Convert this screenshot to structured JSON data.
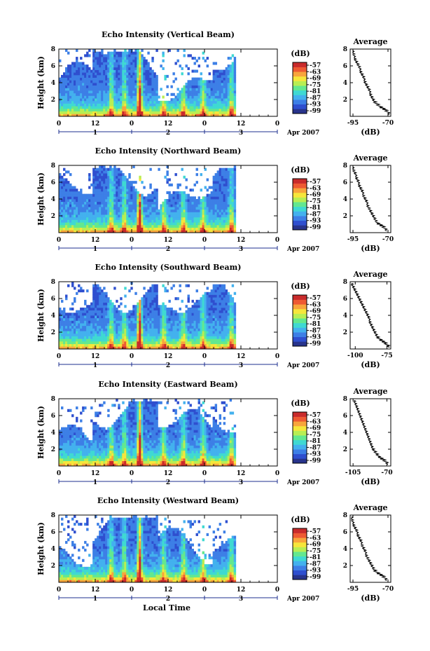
{
  "colors": {
    "colorbar": [
      "#28348c",
      "#2f4fcf",
      "#3d7fe6",
      "#43b1ee",
      "#3fd9d2",
      "#63e88f",
      "#b8ee53",
      "#f6e63b",
      "#f8a53c",
      "#ee5a33",
      "#c92b2b"
    ],
    "trace": "#000000",
    "date_axis": "#1d2f8f"
  },
  "chart_data": [
    {
      "type": "heatmap",
      "title": "Echo Intensity (Vertical Beam)",
      "ylabel": "Height (km)",
      "ylim": [
        0,
        8
      ],
      "yticks": [
        "2",
        "4",
        "6",
        "8"
      ],
      "xticks": [
        "0",
        "12",
        "0",
        "12",
        "0",
        "12",
        "0"
      ],
      "date_ticks": [
        "1",
        "2",
        "3"
      ],
      "date_label": "Apr 2007",
      "cbar_label": "(dB)",
      "cbar_ticks": [
        "-57",
        "-63",
        "-69",
        "-75",
        "-81",
        "-87",
        "-93",
        "-99"
      ],
      "profile": {
        "title": "Average",
        "xlabel": "(dB)",
        "xticks": [
          "-95",
          "-70"
        ],
        "xlim": [
          -97,
          -68
        ],
        "yticks": [
          "2",
          "4",
          "6",
          "8"
        ],
        "height_km": [
          0.2,
          0.5,
          0.8,
          1.0,
          1.2,
          1.5,
          1.8,
          2.1,
          2.4,
          2.7,
          3.0,
          3.3,
          3.6,
          3.9,
          4.2,
          4.5,
          4.8,
          5.1,
          5.4,
          5.7,
          6.0,
          6.3,
          6.6,
          6.9,
          7.2,
          7.5,
          7.8
        ],
        "db": [
          -69,
          -70,
          -72,
          -74,
          -76,
          -78,
          -80,
          -81,
          -82,
          -83,
          -83,
          -84,
          -85,
          -86,
          -87,
          -87,
          -88,
          -89,
          -90,
          -90,
          -91,
          -92,
          -93,
          -94,
          -94,
          -95,
          -95
        ]
      }
    },
    {
      "type": "heatmap",
      "title": "Echo Intensity (Northward Beam)",
      "ylabel": "Height (km)",
      "ylim": [
        0,
        8
      ],
      "yticks": [
        "2",
        "4",
        "6",
        "8"
      ],
      "xticks": [
        "0",
        "12",
        "0",
        "12",
        "0",
        "12",
        "0"
      ],
      "date_ticks": [
        "1",
        "2",
        "3"
      ],
      "date_label": "Apr 2007",
      "cbar_label": "(dB)",
      "cbar_ticks": [
        "-57",
        "-63",
        "-69",
        "-75",
        "-81",
        "-87",
        "-93",
        "-99"
      ],
      "profile": {
        "title": "Average",
        "xlabel": "(dB)",
        "xticks": [
          "-95",
          "-70"
        ],
        "xlim": [
          -97,
          -68
        ],
        "yticks": [
          "2",
          "4",
          "6",
          "8"
        ],
        "height_km": [
          0.2,
          0.5,
          0.8,
          1.0,
          1.2,
          1.5,
          1.8,
          2.1,
          2.4,
          2.7,
          3.0,
          3.3,
          3.6,
          3.9,
          4.2,
          4.5,
          4.8,
          5.1,
          5.4,
          5.7,
          6.0,
          6.3,
          6.6,
          6.9,
          7.2,
          7.5,
          7.8
        ],
        "db": [
          -71,
          -72,
          -74,
          -76,
          -78,
          -79,
          -80,
          -81,
          -82,
          -83,
          -84,
          -85,
          -85,
          -86,
          -87,
          -88,
          -88,
          -89,
          -90,
          -91,
          -91,
          -92,
          -93,
          -93,
          -94,
          -95,
          -95
        ]
      }
    },
    {
      "type": "heatmap",
      "title": "Echo Intensity (Southward Beam)",
      "ylabel": "Height (km)",
      "ylim": [
        0,
        8
      ],
      "yticks": [
        "2",
        "4",
        "6",
        "8"
      ],
      "xticks": [
        "0",
        "12",
        "0",
        "12",
        "0",
        "12",
        "0"
      ],
      "date_ticks": [
        "1",
        "2",
        "3"
      ],
      "date_label": "Apr 2007",
      "cbar_label": "(dB)",
      "cbar_ticks": [
        "-57",
        "-63",
        "-69",
        "-75",
        "-81",
        "-87",
        "-93",
        "-99"
      ],
      "profile": {
        "title": "Average",
        "xlabel": "(dB)",
        "xticks": [
          "-100",
          "-75"
        ],
        "xlim": [
          -104,
          -72
        ],
        "yticks": [
          "2",
          "4",
          "6",
          "8"
        ],
        "height_km": [
          0.2,
          0.5,
          0.8,
          1.0,
          1.2,
          1.5,
          1.8,
          2.1,
          2.4,
          2.7,
          3.0,
          3.3,
          3.6,
          3.9,
          4.2,
          4.5,
          4.8,
          5.1,
          5.4,
          5.7,
          6.0,
          6.3,
          6.6,
          6.9,
          7.2,
          7.5,
          7.8
        ],
        "db": [
          -73,
          -75,
          -77,
          -79,
          -81,
          -83,
          -84,
          -85,
          -86,
          -87,
          -88,
          -89,
          -89,
          -90,
          -91,
          -92,
          -93,
          -94,
          -95,
          -96,
          -97,
          -98,
          -99,
          -100,
          -101,
          -102,
          -103
        ]
      }
    },
    {
      "type": "heatmap",
      "title": "Echo Intensity (Eastward Beam)",
      "ylabel": "Height (km)",
      "ylim": [
        0,
        8
      ],
      "yticks": [
        "2",
        "4",
        "6",
        "8"
      ],
      "xticks": [
        "0",
        "12",
        "0",
        "12",
        "0",
        "12",
        "0"
      ],
      "date_ticks": [
        "1",
        "2",
        "3"
      ],
      "date_label": "Apr 2007",
      "cbar_label": "(dB)",
      "cbar_ticks": [
        "-57",
        "-63",
        "-69",
        "-75",
        "-81",
        "-87",
        "-93",
        "-99"
      ],
      "profile": {
        "title": "Average",
        "xlabel": "(dB)",
        "xticks": [
          "-105",
          "-70"
        ],
        "xlim": [
          -108,
          -66
        ],
        "yticks": [
          "2",
          "4",
          "6",
          "8"
        ],
        "height_km": [
          0.2,
          0.5,
          0.8,
          1.0,
          1.2,
          1.5,
          1.8,
          2.1,
          2.4,
          2.7,
          3.0,
          3.3,
          3.6,
          3.9,
          4.2,
          4.5,
          4.8,
          5.1,
          5.4,
          5.7,
          6.0,
          6.3,
          6.6,
          6.9,
          7.2,
          7.5,
          7.8
        ],
        "db": [
          -69,
          -71,
          -74,
          -77,
          -79,
          -81,
          -83,
          -85,
          -86,
          -87,
          -88,
          -89,
          -90,
          -91,
          -92,
          -93,
          -94,
          -95,
          -96,
          -97,
          -98,
          -99,
          -100,
          -101,
          -102,
          -103,
          -104
        ]
      }
    },
    {
      "type": "heatmap",
      "title": "Echo Intensity (Westward Beam)",
      "ylabel": "Height (km)",
      "ylim": [
        0,
        8
      ],
      "yticks": [
        "2",
        "4",
        "6",
        "8"
      ],
      "xticks": [
        "0",
        "12",
        "0",
        "12",
        "0",
        "12",
        "0"
      ],
      "date_ticks": [
        "1",
        "2",
        "3"
      ],
      "date_label": "Apr 2007",
      "xlabel": "Local Time",
      "cbar_label": "(dB)",
      "cbar_ticks": [
        "-57",
        "-63",
        "-69",
        "-75",
        "-81",
        "-87",
        "-93",
        "-99"
      ],
      "profile": {
        "title": "Average",
        "xlabel": "(dB)",
        "xticks": [
          "-95",
          "-70"
        ],
        "xlim": [
          -97,
          -68
        ],
        "yticks": [
          "2",
          "4",
          "6",
          "8"
        ],
        "height_km": [
          0.2,
          0.5,
          0.8,
          1.0,
          1.2,
          1.5,
          1.8,
          2.1,
          2.4,
          2.7,
          3.0,
          3.3,
          3.6,
          3.9,
          4.2,
          4.5,
          4.8,
          5.1,
          5.4,
          5.7,
          6.0,
          6.3,
          6.6,
          6.9,
          7.2,
          7.5,
          7.8
        ],
        "db": [
          -71,
          -72,
          -74,
          -76,
          -78,
          -80,
          -81,
          -82,
          -83,
          -84,
          -85,
          -86,
          -86,
          -87,
          -88,
          -89,
          -89,
          -90,
          -91,
          -92,
          -92,
          -93,
          -94,
          -95,
          -95,
          -96,
          -96
        ]
      }
    }
  ]
}
